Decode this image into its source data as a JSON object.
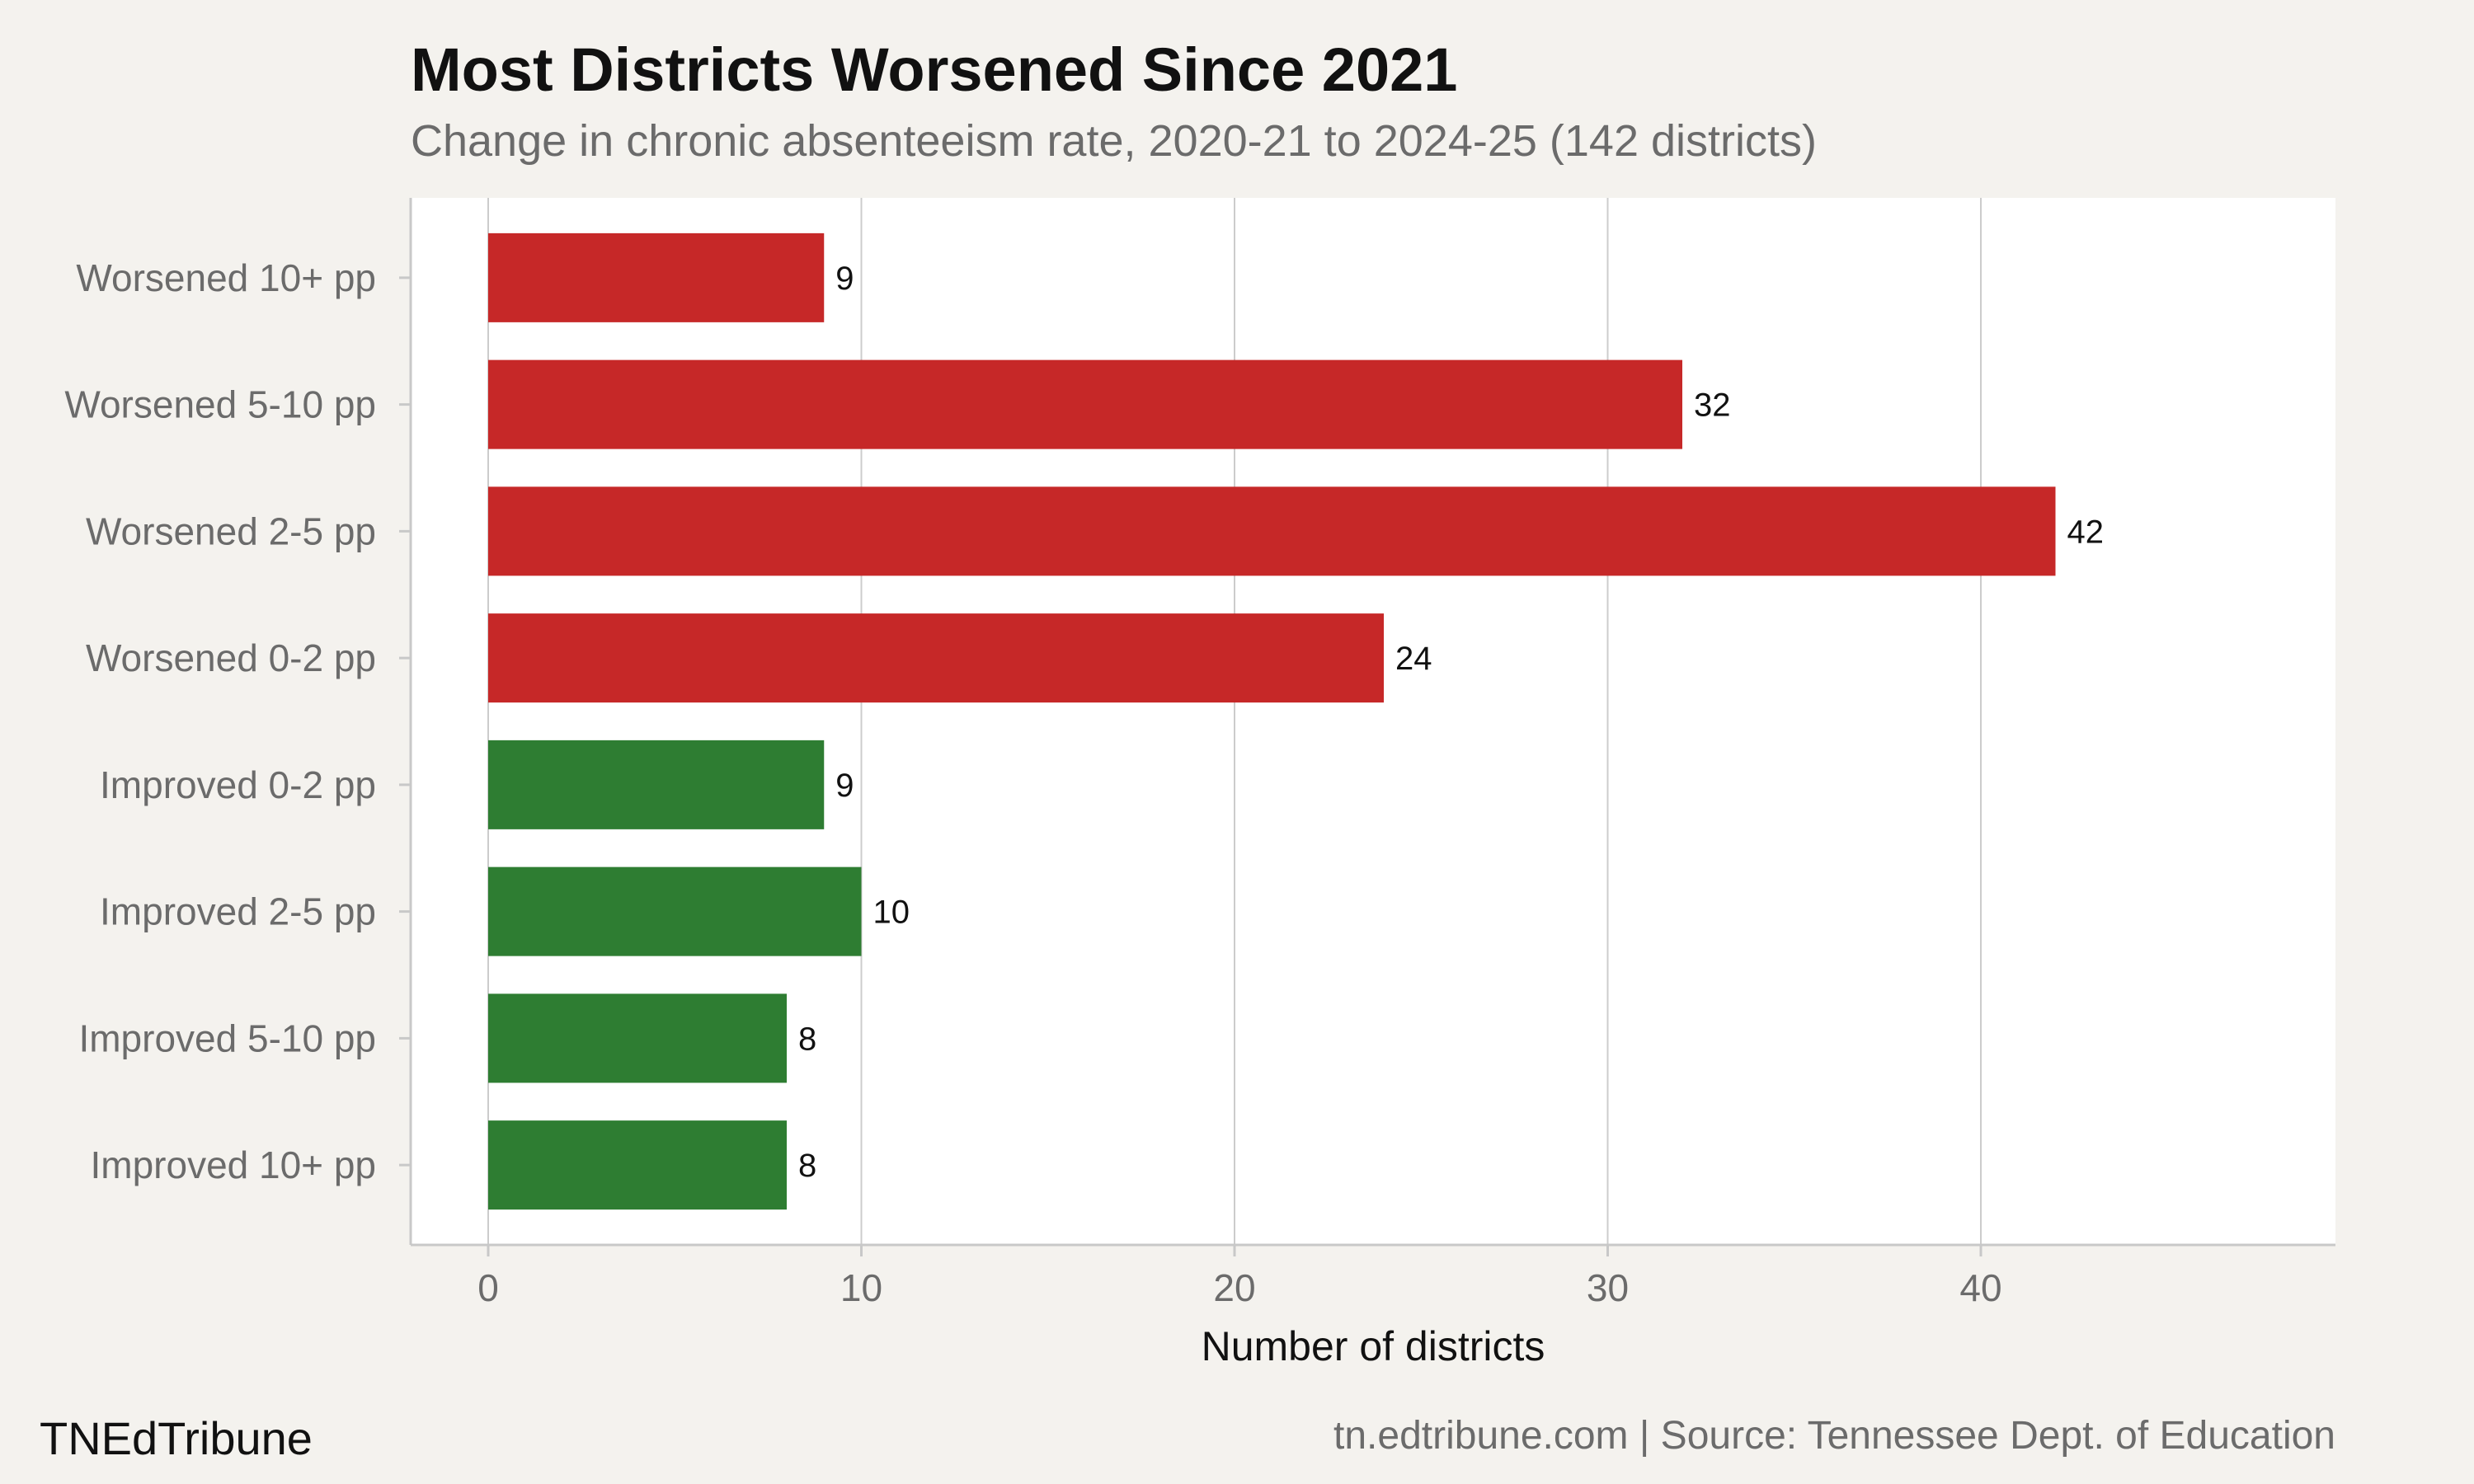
{
  "chart_data": {
    "type": "bar",
    "orientation": "horizontal",
    "title": "Most Districts Worsened Since 2021",
    "subtitle": "Change in chronic absenteeism rate, 2020-21 to 2024-25 (142 districts)",
    "xlabel": "Number of districts",
    "ylabel": "",
    "xlim": [
      0,
      49
    ],
    "xticks": [
      0,
      10,
      20,
      30,
      40
    ],
    "grid": true,
    "categories": [
      "Worsened 10+ pp",
      "Worsened 5-10 pp",
      "Worsened 2-5 pp",
      "Worsened 0-2 pp",
      "Improved 0-2 pp",
      "Improved 2-5 pp",
      "Improved 5-10 pp",
      "Improved 10+ pp"
    ],
    "values": [
      9,
      32,
      42,
      24,
      9,
      10,
      8,
      8
    ],
    "bar_colors": [
      "#c62828",
      "#c62828",
      "#c62828",
      "#c62828",
      "#2e7d32",
      "#2e7d32",
      "#2e7d32",
      "#2e7d32"
    ]
  },
  "footer": {
    "brand": "TNEdTribune",
    "source": "tn.edtribune.com | Source: Tennessee Dept. of Education"
  }
}
